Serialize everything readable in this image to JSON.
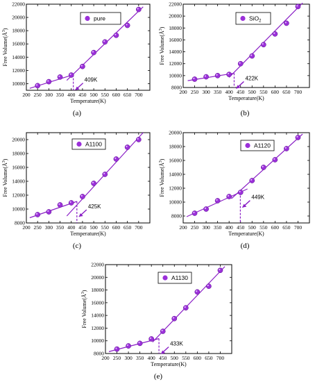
{
  "chart_data": [
    {
      "type": "scatter",
      "panel_label": "(a)",
      "legend": "pure",
      "legend_sub": "",
      "xlabel": "Temperature(K)",
      "ylabel": "Free Volume(Å",
      "ylabel_sup": "3",
      "ylabel_close": ")",
      "xlim": [
        200,
        750
      ],
      "ylim": [
        9000,
        22000
      ],
      "xticks": [
        200,
        250,
        300,
        350,
        400,
        450,
        500,
        550,
        600,
        650,
        700
      ],
      "yticks": [
        10000,
        12000,
        14000,
        16000,
        18000,
        20000,
        22000
      ],
      "transition_label": "409K",
      "transition_x": 409,
      "marker_color": "#9b30d9",
      "line_color": "#8a1fc6",
      "series": [
        {
          "x": [
            250,
            300,
            350,
            400,
            450,
            500,
            550,
            600,
            650,
            700
          ],
          "y": [
            9700,
            10300,
            11000,
            11300,
            12600,
            14700,
            16300,
            17300,
            18800,
            21200
          ]
        }
      ],
      "fit_low": [
        [
          215,
          9300
        ],
        [
          409,
          11350
        ]
      ],
      "fit_high": [
        [
          380,
          10500
        ],
        [
          720,
          21600
        ]
      ]
    },
    {
      "type": "scatter",
      "panel_label": "(b)",
      "legend": "SiO",
      "legend_sub": "2",
      "xlabel": "Temperature(K)",
      "ylabel": "Free Volume(Å",
      "ylabel_sup": "3",
      "ylabel_close": ")",
      "xlim": [
        200,
        750
      ],
      "ylim": [
        8000,
        22000
      ],
      "xticks": [
        200,
        250,
        300,
        350,
        400,
        450,
        500,
        550,
        600,
        650,
        700
      ],
      "yticks": [
        8000,
        10000,
        12000,
        14000,
        16000,
        18000,
        20000,
        22000
      ],
      "transition_label": "422K",
      "transition_x": 422,
      "marker_color": "#9b30d9",
      "line_color": "#8a1fc6",
      "series": [
        {
          "x": [
            250,
            300,
            350,
            400,
            450,
            500,
            550,
            600,
            650,
            700
          ],
          "y": [
            9400,
            9800,
            10000,
            10200,
            12000,
            13300,
            15200,
            17000,
            18800,
            21600
          ]
        }
      ],
      "fit_low": [
        [
          220,
          9150
        ],
        [
          422,
          10400
        ]
      ],
      "fit_high": [
        [
          400,
          9700
        ],
        [
          720,
          22200
        ]
      ]
    },
    {
      "type": "scatter",
      "panel_label": "(c)",
      "legend": "A1100",
      "legend_sub": "",
      "xlabel": "Temperature(K)",
      "ylabel": "Free Volume(Å",
      "ylabel_sup": "3",
      "ylabel_close": ")",
      "xlim": [
        200,
        750
      ],
      "ylim": [
        8000,
        21000
      ],
      "xticks": [
        200,
        250,
        300,
        350,
        400,
        450,
        500,
        550,
        600,
        650,
        700
      ],
      "yticks": [
        8000,
        10000,
        12000,
        14000,
        16000,
        18000,
        20000
      ],
      "transition_label": "425K",
      "transition_x": 425,
      "marker_color": "#9b30d9",
      "line_color": "#8a1fc6",
      "series": [
        {
          "x": [
            250,
            300,
            350,
            400,
            450,
            500,
            550,
            600,
            650,
            700
          ],
          "y": [
            9200,
            9600,
            10600,
            10900,
            11800,
            13700,
            15000,
            17200,
            18900,
            20000
          ]
        }
      ],
      "fit_low": [
        [
          215,
          8750
        ],
        [
          425,
          11100
        ]
      ],
      "fit_high": [
        [
          380,
          9000
        ],
        [
          720,
          21000
        ]
      ]
    },
    {
      "type": "scatter",
      "panel_label": "(d)",
      "legend": "A1120",
      "legend_sub": "",
      "xlabel": "Temperature(K)",
      "ylabel": "Free Volume(Å",
      "ylabel_sup": "3",
      "ylabel_close": ")",
      "xlim": [
        200,
        750
      ],
      "ylim": [
        7000,
        20000
      ],
      "xticks": [
        200,
        250,
        300,
        350,
        400,
        450,
        500,
        550,
        600,
        650,
        700
      ],
      "yticks": [
        8000,
        10000,
        12000,
        14000,
        16000,
        18000,
        20000
      ],
      "transition_label": "449K",
      "transition_x": 449,
      "marker_color": "#9b30d9",
      "line_color": "#8a1fc6",
      "series": [
        {
          "x": [
            250,
            300,
            350,
            400,
            450,
            500,
            550,
            600,
            650,
            700
          ],
          "y": [
            8400,
            9000,
            10200,
            10800,
            11400,
            13100,
            15000,
            16100,
            17700,
            19300
          ]
        }
      ],
      "fit_low": [
        [
          215,
          7900
        ],
        [
          480,
          11900
        ]
      ],
      "fit_high": [
        [
          410,
          10500
        ],
        [
          720,
          19800
        ]
      ]
    },
    {
      "type": "scatter",
      "panel_label": "(e)",
      "legend": "A1130",
      "legend_sub": "",
      "xlabel": "Temperature(K)",
      "ylabel": "Free Volume(Å",
      "ylabel_sup": "3",
      "ylabel_close": ")",
      "xlim": [
        200,
        750
      ],
      "ylim": [
        8000,
        22000
      ],
      "xticks": [
        200,
        250,
        300,
        350,
        400,
        450,
        500,
        550,
        600,
        650,
        700
      ],
      "yticks": [
        8000,
        10000,
        12000,
        14000,
        16000,
        18000,
        20000,
        22000
      ],
      "transition_label": "433K",
      "transition_x": 433,
      "marker_color": "#9b30d9",
      "line_color": "#8a1fc6",
      "series": [
        {
          "x": [
            250,
            300,
            350,
            400,
            450,
            500,
            550,
            600,
            650,
            700
          ],
          "y": [
            8700,
            9200,
            9600,
            10300,
            11500,
            13500,
            15200,
            17700,
            18600,
            21100
          ]
        }
      ],
      "fit_low": [
        [
          215,
          8300
        ],
        [
          433,
          10350
        ]
      ],
      "fit_high": [
        [
          405,
          9800
        ],
        [
          720,
          21700
        ]
      ]
    }
  ]
}
